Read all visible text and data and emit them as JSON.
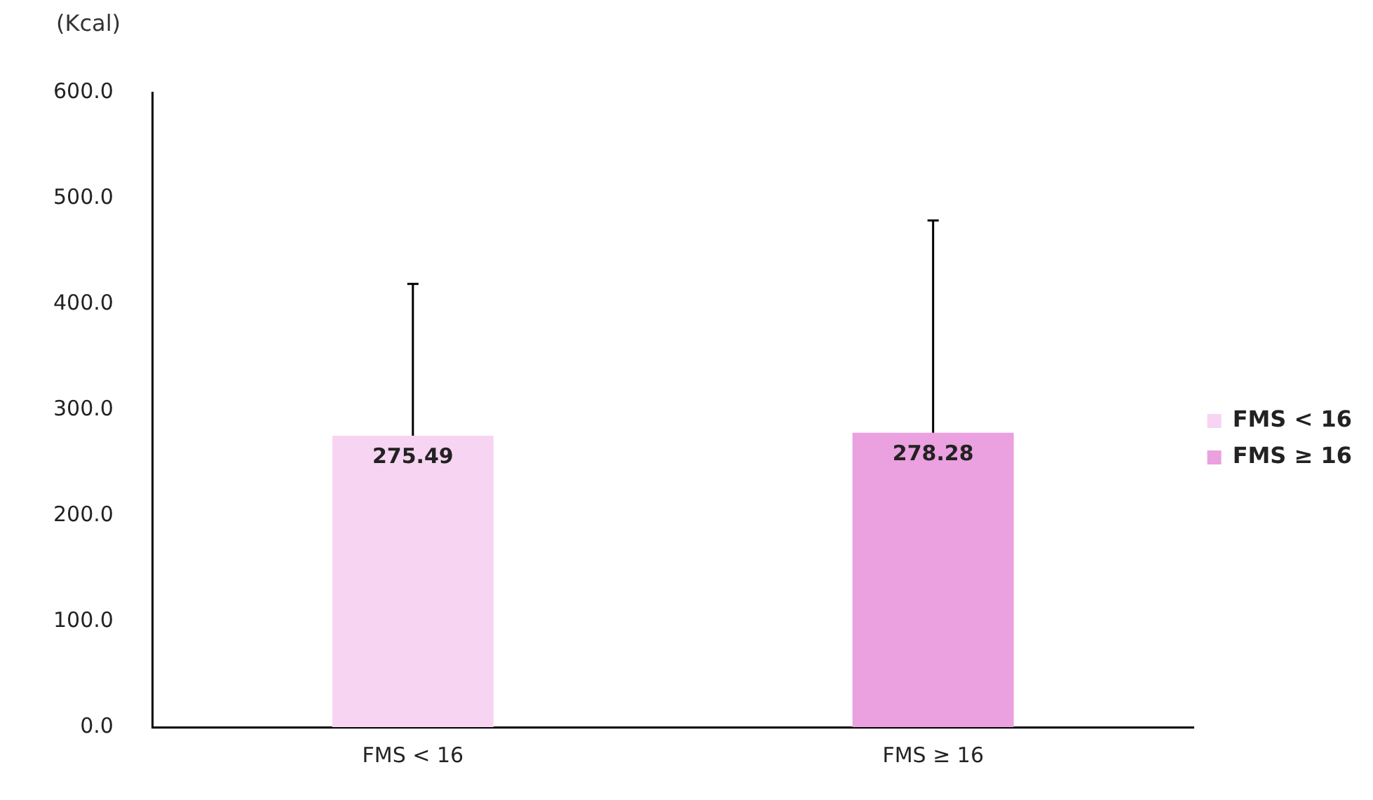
{
  "chart_data": {
    "type": "bar",
    "ylabel": "(Kcal)",
    "categories": [
      "FMS < 16",
      "FMS ≥ 16"
    ],
    "series": [
      {
        "name": "FMS < 16",
        "color": "#f7d4f2",
        "values": [
          275.49,
          null
        ],
        "errors": [
          [
            275.49,
            419
          ],
          null
        ]
      },
      {
        "name": "FMS ≥ 16",
        "color": "#eba0e0",
        "values": [
          null,
          278.28
        ],
        "errors": [
          null,
          [
            278.28,
            479
          ]
        ]
      }
    ],
    "ylim": [
      0,
      600
    ],
    "yticks": [
      {
        "value": 0,
        "label": "0.0"
      },
      {
        "value": 100,
        "label": "100.0"
      },
      {
        "value": 200,
        "label": "200.0"
      },
      {
        "value": 300,
        "label": "300.0"
      },
      {
        "value": 400,
        "label": "400.0"
      },
      {
        "value": 500,
        "label": "500.0"
      },
      {
        "value": 600,
        "label": "600.0"
      }
    ],
    "data_labels": true,
    "legend": "right",
    "grid": false
  }
}
